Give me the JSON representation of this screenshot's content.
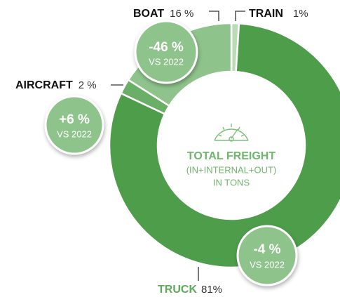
{
  "chart_data": {
    "type": "donut",
    "categories": [
      "TRAIN",
      "TRUCK",
      "AIRCRAFT",
      "BOAT"
    ],
    "values": [
      1,
      81,
      2,
      16
    ],
    "value_labels": [
      "1%",
      "81%",
      "2 %",
      "16 %"
    ],
    "colors": [
      "#b9dcb6",
      "#4e9d4b",
      "#6aae67",
      "#8fc38c"
    ],
    "center_text": [
      "TOTAL FREIGHT",
      "(IN+INTERNAL+OUT)",
      "IN TONS"
    ],
    "badges": [
      {
        "label": "-46 %",
        "note": "VS 2022"
      },
      {
        "label": "+6 %",
        "note": "VS 2022"
      },
      {
        "label": "-4 %",
        "note": "VS 2022"
      }
    ]
  }
}
